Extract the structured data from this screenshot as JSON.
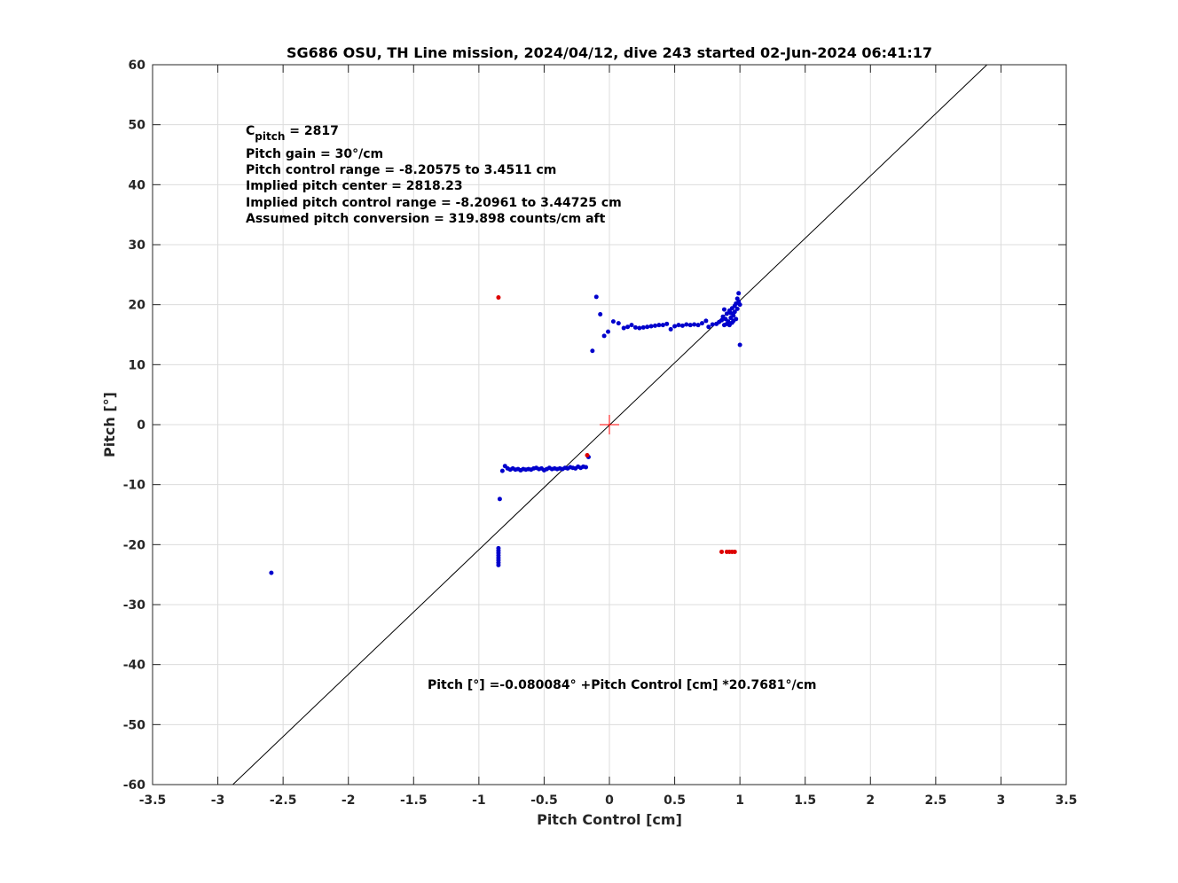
{
  "chart_data": {
    "type": "scatter",
    "title": "SG686 OSU, TH Line mission, 2024/04/12, dive 243 started 02-Jun-2024 06:41:17",
    "xlabel": "Pitch Control [cm]",
    "ylabel": "Pitch [°]",
    "xlim": [
      -3.5,
      3.5
    ],
    "ylim": [
      -60,
      60
    ],
    "xticks": [
      -3.5,
      -3,
      -2.5,
      -2,
      -1.5,
      -1,
      -0.5,
      0,
      0.5,
      1,
      1.5,
      2,
      2.5,
      3,
      3.5
    ],
    "xtick_labels": [
      "-3.5",
      "-3",
      "-2.5",
      "-2",
      "-1.5",
      "-1",
      "-0.5",
      "0",
      "0.5",
      "1",
      "1.5",
      "2",
      "2.5",
      "3",
      "3.5"
    ],
    "yticks": [
      -60,
      -50,
      -40,
      -30,
      -20,
      -10,
      0,
      10,
      20,
      30,
      40,
      50,
      60
    ],
    "ytick_labels": [
      "-60",
      "-50",
      "-40",
      "-30",
      "-20",
      "-10",
      "0",
      "10",
      "20",
      "30",
      "40",
      "50",
      "60"
    ],
    "grid": true,
    "annotations": {
      "c_pitch_main": "C",
      "c_pitch_sub": "pitch",
      "c_pitch_value": " = 2817",
      "lines": [
        "Pitch gain = 30°/cm",
        "Pitch control range = -8.20575 to 3.4511 cm",
        "Implied pitch center = 2818.23",
        "Implied pitch control range = -8.20961 to 3.44725 cm",
        "Assumed pitch conversion = 319.898 counts/cm aft"
      ],
      "fit_equation": "Pitch [°] =-0.080084° +Pitch Control [cm] *20.7681°/cm"
    },
    "fit_line": {
      "intercept": -0.080084,
      "slope": 20.7681,
      "color": "#000000"
    },
    "center_marker": {
      "x": 0,
      "y": 0,
      "color": "#ff0000"
    },
    "series": [
      {
        "color": "#0000cc",
        "points": [
          [
            -2.59,
            -24.7
          ],
          [
            -0.84,
            -12.4
          ],
          [
            -0.82,
            -7.7
          ],
          [
            -0.8,
            -6.9
          ],
          [
            -0.78,
            -7.3
          ],
          [
            -0.76,
            -7.5
          ],
          [
            -0.74,
            -7.3
          ],
          [
            -0.72,
            -7.5
          ],
          [
            -0.7,
            -7.4
          ],
          [
            -0.68,
            -7.6
          ],
          [
            -0.66,
            -7.4
          ],
          [
            -0.64,
            -7.5
          ],
          [
            -0.62,
            -7.4
          ],
          [
            -0.6,
            -7.5
          ],
          [
            -0.58,
            -7.3
          ],
          [
            -0.56,
            -7.2
          ],
          [
            -0.54,
            -7.4
          ],
          [
            -0.52,
            -7.3
          ],
          [
            -0.5,
            -7.6
          ],
          [
            -0.48,
            -7.4
          ],
          [
            -0.46,
            -7.2
          ],
          [
            -0.44,
            -7.4
          ],
          [
            -0.42,
            -7.3
          ],
          [
            -0.4,
            -7.4
          ],
          [
            -0.38,
            -7.3
          ],
          [
            -0.36,
            -7.4
          ],
          [
            -0.34,
            -7.2
          ],
          [
            -0.32,
            -7.3
          ],
          [
            -0.3,
            -7.1
          ],
          [
            -0.28,
            -7.2
          ],
          [
            -0.26,
            -7.3
          ],
          [
            -0.24,
            -7.0
          ],
          [
            -0.22,
            -7.2
          ],
          [
            -0.2,
            -7.0
          ],
          [
            -0.18,
            -7.1
          ],
          [
            -0.16,
            -5.4
          ],
          [
            -0.13,
            12.3
          ],
          [
            -0.1,
            21.3
          ],
          [
            -0.07,
            18.4
          ],
          [
            -0.04,
            14.8
          ],
          [
            -0.01,
            15.5
          ],
          [
            0.03,
            17.2
          ],
          [
            0.07,
            16.9
          ],
          [
            0.11,
            16.1
          ],
          [
            0.14,
            16.3
          ],
          [
            0.17,
            16.6
          ],
          [
            0.2,
            16.2
          ],
          [
            0.23,
            16.1
          ],
          [
            0.26,
            16.2
          ],
          [
            0.29,
            16.3
          ],
          [
            0.32,
            16.4
          ],
          [
            0.35,
            16.5
          ],
          [
            0.38,
            16.6
          ],
          [
            0.41,
            16.6
          ],
          [
            0.44,
            16.8
          ],
          [
            0.47,
            15.9
          ],
          [
            0.5,
            16.4
          ],
          [
            0.53,
            16.6
          ],
          [
            0.56,
            16.5
          ],
          [
            0.59,
            16.7
          ],
          [
            0.62,
            16.6
          ],
          [
            0.65,
            16.7
          ],
          [
            0.68,
            16.6
          ],
          [
            0.71,
            16.9
          ],
          [
            0.74,
            17.3
          ],
          [
            0.76,
            16.3
          ],
          [
            0.79,
            16.7
          ],
          [
            0.82,
            16.8
          ],
          [
            0.84,
            17.1
          ],
          [
            0.86,
            17.4
          ],
          [
            0.87,
            18.0
          ],
          [
            0.88,
            16.6
          ],
          [
            0.88,
            19.2
          ],
          [
            0.89,
            17.6
          ],
          [
            0.9,
            16.8
          ],
          [
            0.9,
            18.5
          ],
          [
            0.91,
            17.2
          ],
          [
            0.92,
            19.0
          ],
          [
            0.92,
            16.6
          ],
          [
            0.93,
            17.8
          ],
          [
            0.93,
            18.6
          ],
          [
            0.94,
            17.0
          ],
          [
            0.94,
            19.4
          ],
          [
            0.95,
            18.2
          ],
          [
            0.95,
            17.3
          ],
          [
            0.96,
            19.8
          ],
          [
            0.96,
            18.8
          ],
          [
            0.97,
            17.6
          ],
          [
            0.97,
            20.2
          ],
          [
            0.98,
            19.3
          ],
          [
            0.98,
            21.0
          ],
          [
            0.99,
            20.5
          ],
          [
            0.99,
            21.9
          ],
          [
            1.0,
            20.0
          ],
          [
            1.0,
            13.3
          ],
          [
            -0.85,
            -20.6
          ],
          [
            -0.85,
            -21.0
          ],
          [
            -0.85,
            -21.4
          ],
          [
            -0.85,
            -21.8
          ],
          [
            -0.85,
            -22.2
          ],
          [
            -0.85,
            -22.6
          ],
          [
            -0.85,
            -23.0
          ],
          [
            -0.85,
            -23.4
          ]
        ]
      },
      {
        "color": "#dd0000",
        "points": [
          [
            -0.85,
            21.2
          ],
          [
            -0.17,
            -5.1
          ],
          [
            0.86,
            -21.2
          ],
          [
            0.9,
            -21.2
          ],
          [
            0.92,
            -21.2
          ],
          [
            0.94,
            -21.2
          ],
          [
            0.96,
            -21.2
          ]
        ]
      }
    ]
  }
}
